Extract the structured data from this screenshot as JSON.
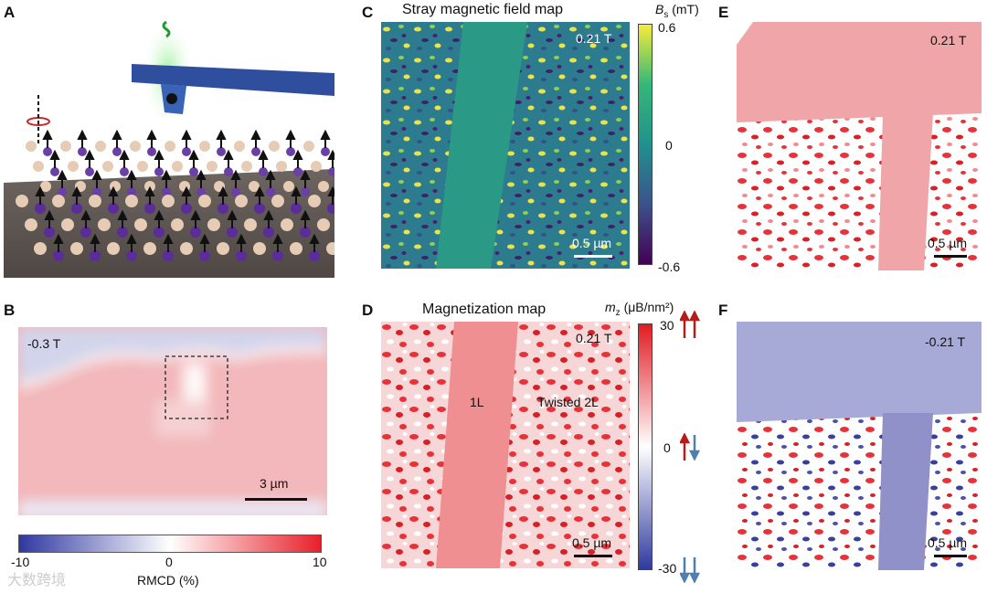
{
  "panels": {
    "A": {
      "letter": "A"
    },
    "B": {
      "letter": "B",
      "field": "-0.3 T",
      "scalebar_label": "3 µm",
      "colorbar": {
        "label": "RMCD (%)",
        "min": "-10",
        "mid": "0",
        "max": "10"
      }
    },
    "C": {
      "letter": "C",
      "title": "Stray magnetic field map",
      "field": "0.21 T",
      "scalebar_label": "0.5 µm",
      "colorbar": {
        "quantity": "B",
        "subscript": "s",
        "unit": "(mT)",
        "max": "0.6",
        "mid": "0",
        "min": "-0.6"
      }
    },
    "D": {
      "letter": "D",
      "title": "Magnetization map",
      "field": "0.21 T",
      "scalebar_label": "0.5 µm",
      "region_1": "1L",
      "region_2": "Twisted 2L",
      "colorbar": {
        "quantity": "m",
        "subscript": "z",
        "unit": "(μB/nm²)",
        "max": "30",
        "mid": "0",
        "min": "-30"
      }
    },
    "E": {
      "letter": "E",
      "field": "0.21 T",
      "scalebar_label": "0.5 µm"
    },
    "F": {
      "letter": "F",
      "field": "-0.21 T",
      "scalebar_label": "0.5 µm"
    }
  },
  "watermark": "大数跨境",
  "colors": {
    "red": "#e8323a",
    "blue": "#3b3f9a",
    "yellow": "#f0e442",
    "teal": "#2a9a8a",
    "purple": "#3d1566"
  }
}
